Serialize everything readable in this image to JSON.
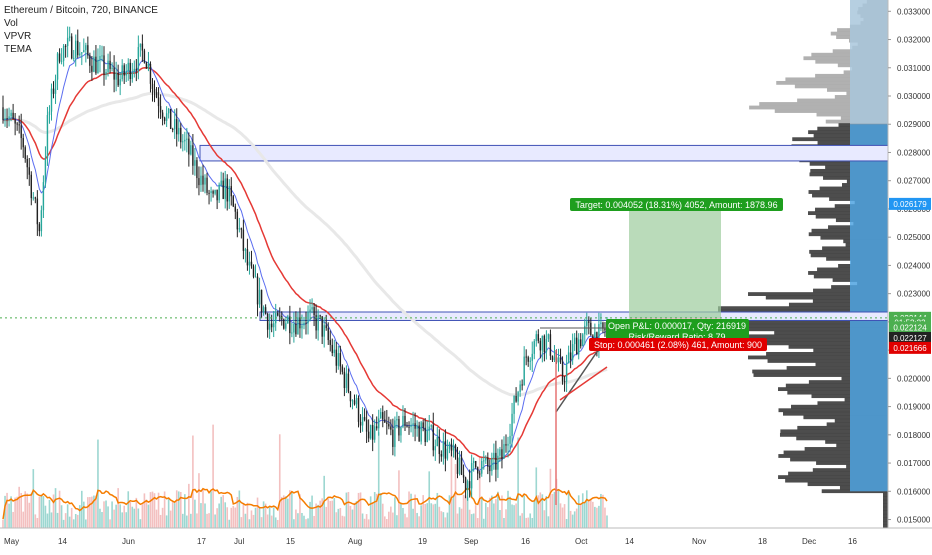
{
  "header": {
    "title": "Ethereum / Bitcoin, 720, BINANCE",
    "indicators": [
      "Vol",
      "VPVR",
      "TEMA"
    ]
  },
  "colors": {
    "up": "#26a69a",
    "down": "#222222",
    "ema_fast": "#5b6df0",
    "ema_slow": "#e53935",
    "ema_long": "#e8e8e8",
    "axis_bg": "#ffffff",
    "zone_fill": "#e8eaff",
    "zone_border": "#3f51b5",
    "target_fill": "#9ccc9c",
    "target_label": "#1e9e1e",
    "stop_label": "#e00000",
    "vpvr_top": "#a8a8a8",
    "vpvr_body": "#3a3a3a",
    "vpvr_value_area": "#4fa3e0",
    "hline": "#4caf50",
    "volume_ma": "#f57c00"
  },
  "chart_data": {
    "type": "candlestick",
    "title": "Ethereum / Bitcoin, 720, BINANCE",
    "x_tick_labels": [
      "May",
      "14",
      "Jun",
      "17",
      "Jul",
      "15",
      "Aug",
      "19",
      "Sep",
      "16",
      "Oct",
      "14",
      "Nov",
      "18",
      "Dec",
      "16"
    ],
    "y_tick_labels": [
      "0.033000",
      "0.032000",
      "0.031000",
      "0.030000",
      "0.029000",
      "0.028000",
      "0.027000",
      "0.026000",
      "0.025000",
      "0.024000",
      "0.023000",
      "0.022000",
      "0.021000",
      "0.020000",
      "0.019000",
      "0.018000",
      "0.017000",
      "0.016000",
      "0.015000"
    ],
    "y_range": [
      0.0147,
      0.0334
    ],
    "price_anchors": [
      [
        0,
        0.0296
      ],
      [
        5,
        0.029
      ],
      [
        10,
        0.0283
      ],
      [
        15,
        0.0264
      ],
      [
        18,
        0.0252
      ],
      [
        22,
        0.029
      ],
      [
        28,
        0.0316
      ],
      [
        35,
        0.0318
      ],
      [
        45,
        0.0312
      ],
      [
        52,
        0.0309
      ],
      [
        58,
        0.0306
      ],
      [
        65,
        0.0312
      ],
      [
        70,
        0.0316
      ],
      [
        75,
        0.0302
      ],
      [
        82,
        0.0291
      ],
      [
        90,
        0.0283
      ],
      [
        97,
        0.0272
      ],
      [
        104,
        0.0262
      ],
      [
        110,
        0.0268
      ],
      [
        115,
        0.0258
      ],
      [
        121,
        0.024
      ],
      [
        127,
        0.0228
      ],
      [
        133,
        0.0218
      ],
      [
        139,
        0.0221
      ],
      [
        145,
        0.022
      ],
      [
        151,
        0.0222
      ],
      [
        157,
        0.0219
      ],
      [
        163,
        0.021
      ],
      [
        169,
        0.02
      ],
      [
        175,
        0.019
      ],
      [
        181,
        0.0178
      ],
      [
        187,
        0.0184
      ],
      [
        193,
        0.018
      ],
      [
        199,
        0.0185
      ],
      [
        205,
        0.0182
      ],
      [
        211,
        0.018
      ],
      [
        217,
        0.0176
      ],
      [
        223,
        0.0172
      ],
      [
        229,
        0.0163
      ],
      [
        235,
        0.017
      ],
      [
        241,
        0.0168
      ],
      [
        247,
        0.0172
      ],
      [
        253,
        0.019
      ],
      [
        259,
        0.0208
      ],
      [
        265,
        0.0215
      ],
      [
        271,
        0.0211
      ],
      [
        277,
        0.02
      ],
      [
        283,
        0.0212
      ],
      [
        289,
        0.0217
      ],
      [
        295,
        0.0215
      ],
      [
        299,
        0.0218
      ]
    ],
    "overlays": {
      "zones": [
        {
          "name": "upper-resistance",
          "from": 0.0277,
          "to": 0.02825
        },
        {
          "name": "lower-resistance",
          "from": 0.02205,
          "to": 0.02235
        }
      ],
      "long_position": {
        "entry": 0.022127,
        "target": 0.026179,
        "stop": 0.021666,
        "target_label": "Target: 0.004052 (18.31%) 4052, Amount: 1878.96",
        "pnl_label": "Open P&L: 0.000017, Qty: 216919",
        "rr_label": "Risk/Reward Ratio: 8.79",
        "stop_label": "Stop: 0.000461 (2.08%) 461, Amount: 900"
      },
      "horizontal_line": 0.022144
    },
    "price_labels": [
      {
        "value": "0.026179",
        "price": 0.026179,
        "color": "#2196f3"
      },
      {
        "value": "0.022144",
        "price": 0.022144,
        "color": "#4caf50"
      },
      {
        "value": "01:52:23",
        "price": 0.02197,
        "color": "#4caf50"
      },
      {
        "value": "0.022124",
        "price": 0.0218,
        "color": "#4caf50"
      },
      {
        "value": "0.022127",
        "price": 0.02143,
        "color": "#222222"
      },
      {
        "value": "0.021666",
        "price": 0.02108,
        "color": "#e00000"
      }
    ]
  }
}
